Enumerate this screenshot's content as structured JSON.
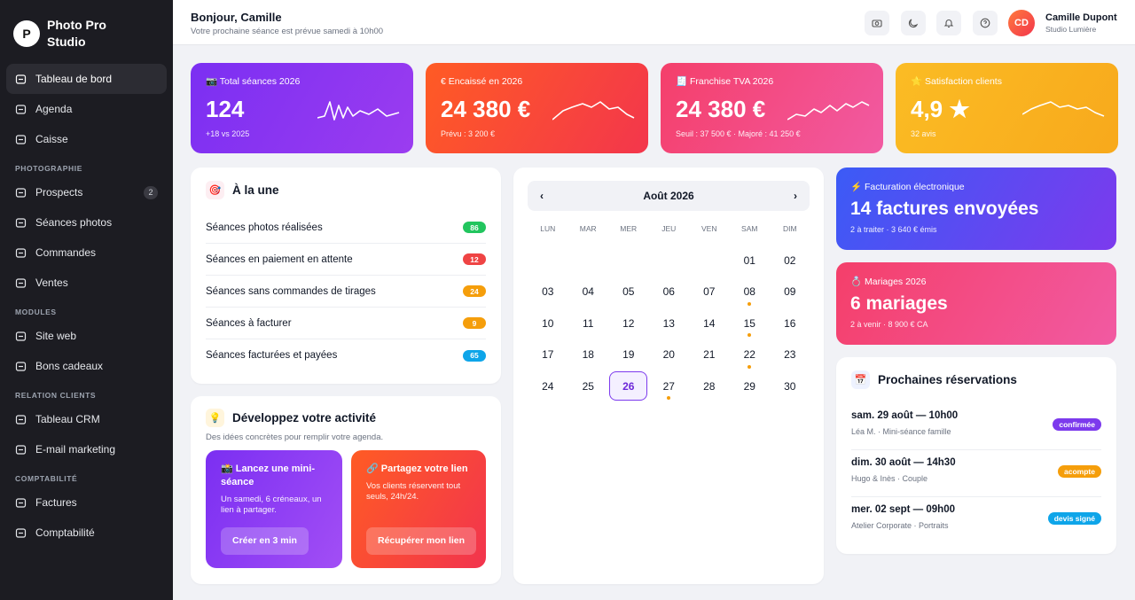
{
  "sidebar": {
    "brand_initial": "P",
    "brand": "Photo Pro Studio",
    "sections": [
      {
        "items": [
          {
            "label": "Tableau de bord",
            "active": true
          },
          {
            "label": "Agenda"
          },
          {
            "label": "Caisse"
          }
        ]
      },
      {
        "title": "PHOTOGRAPHIE",
        "items": [
          {
            "label": "Prospects",
            "badge": 2
          },
          {
            "label": "Séances photos"
          },
          {
            "label": "Commandes"
          },
          {
            "label": "Ventes"
          }
        ]
      },
      {
        "title": "MODULES",
        "items": [
          {
            "label": "Site web"
          },
          {
            "label": "Bons cadeaux"
          }
        ]
      },
      {
        "title": "RELATION CLIENTS",
        "items": [
          {
            "label": "Tableau CRM"
          },
          {
            "label": "E-mail marketing"
          }
        ]
      },
      {
        "title": "COMPTABILITÉ",
        "items": [
          {
            "label": "Factures"
          },
          {
            "label": "Comptabilité"
          }
        ]
      }
    ]
  },
  "header": {
    "greeting": "Bonjour, Camille",
    "subtitle": "Votre prochaine séance est prévue samedi à 10h00",
    "initials": "CD",
    "user": "Camille Dupont",
    "studio": "Studio Lumière"
  },
  "kpis": [
    {
      "label": "📷 Total séances 2026",
      "value": "124",
      "note": "+18 vs 2025",
      "colors": [
        "#7b2ff2",
        "#9b3cf0"
      ]
    },
    {
      "label": "€ Encaissé en 2026",
      "value": "24 380 €",
      "note": "Prévu : 3 200 €",
      "colors": [
        "#ff5b24",
        "#f3364c"
      ]
    },
    {
      "label": "🧾 Franchise TVA 2026",
      "value": "24 380 €",
      "note": "Seuil : 37 500 € · Majoré : 41 250 €",
      "colors": [
        "#f43f6a",
        "#f25aa2"
      ]
    },
    {
      "label": "⭐ Satisfaction clients",
      "value": "4,9 ★",
      "note": "32 avis",
      "colors": [
        "#fbbc24",
        "#f8a91c"
      ]
    }
  ],
  "highlights": {
    "icon": "🎯",
    "title": "À la une",
    "items": [
      {
        "label": "Séances photos réalisées",
        "count": 86,
        "color": "#22c55e"
      },
      {
        "label": "Séances en paiement en attente",
        "count": 12,
        "color": "#ef4444"
      },
      {
        "label": "Séances sans commandes de tirages",
        "count": 24,
        "color": "#f59e0b"
      },
      {
        "label": "Séances à facturer",
        "count": 9,
        "color": "#f59e0b"
      },
      {
        "label": "Séances facturées et payées",
        "count": 65,
        "color": "#0ea5e9"
      }
    ]
  },
  "grow": {
    "icon": "💡",
    "title": "Développez votre activité",
    "subtitle": "Des idées concrètes pour remplir votre agenda.",
    "cards": [
      {
        "title": "📸 Lancez une mini-séance",
        "text": "Un samedi, 6 créneaux, un lien à partager.",
        "button": "Créer en 3 min",
        "colors": [
          "#7b2ff2",
          "#a24ef5"
        ]
      },
      {
        "title": "🔗 Partagez votre lien",
        "text": "Vos clients réservent tout seuls, 24h/24.",
        "button": "Récupérer mon lien",
        "colors": [
          "#ff5b24",
          "#f2344e"
        ]
      }
    ]
  },
  "calendar": {
    "prev": "‹",
    "month": "Août 2026",
    "next": "›",
    "weekdays": [
      "LUN",
      "MAR",
      "MER",
      "JEU",
      "VEN",
      "SAM",
      "DIM"
    ],
    "weeks": [
      [
        null,
        null,
        null,
        null,
        null,
        "01",
        "02"
      ],
      [
        "03",
        "04",
        "05",
        "06",
        "07",
        "08",
        "09"
      ],
      [
        "10",
        "11",
        "12",
        "13",
        "14",
        "15",
        "16"
      ],
      [
        "17",
        "18",
        "19",
        "20",
        "21",
        "22",
        "23"
      ],
      [
        "24",
        "25",
        "26",
        "27",
        "28",
        "29",
        "30"
      ]
    ],
    "selected": "26",
    "event_days": [
      "08",
      "15",
      "22",
      "27"
    ]
  },
  "stats": [
    {
      "label": "⚡ Facturation électronique",
      "value": "14 factures envoyées",
      "note": "2 à traiter · 3 640 € émis",
      "colors": [
        "#3b5bf6",
        "#7c3aed"
      ]
    },
    {
      "label": "💍 Mariages 2026",
      "value": "6 mariages",
      "note": "2 à venir · 8 900 € CA",
      "colors": [
        "#f43f6a",
        "#f25aa2"
      ]
    }
  ],
  "reservations": {
    "icon": "📅",
    "title": "Prochaines réservations",
    "items": [
      {
        "date": "sam. 29 août — 10h00",
        "detail": "Léa M. · Mini-séance famille",
        "status": "confirmée",
        "color": "#7c3aed"
      },
      {
        "date": "dim. 30 août — 14h30",
        "detail": "Hugo & Inès · Couple",
        "status": "acompte",
        "color": "#f59e0b"
      },
      {
        "date": "mer. 02 sept — 09h00",
        "detail": "Atelier Corporate · Portraits",
        "status": "devis signé",
        "color": "#0ea5e9"
      }
    ]
  }
}
